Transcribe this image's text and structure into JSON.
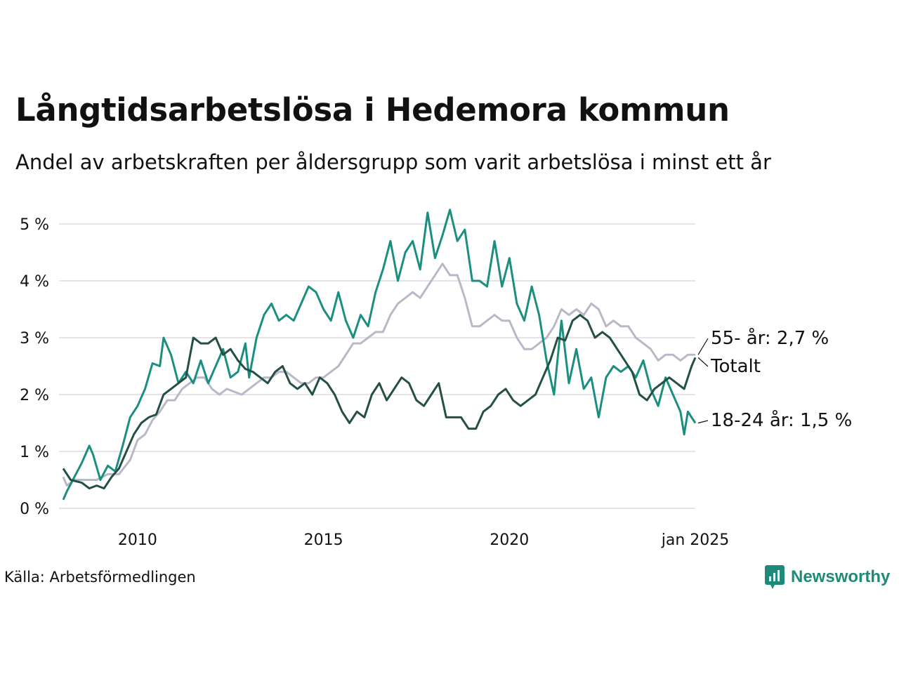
{
  "title": "Långtidsarbetslösa i Hedemora kommun",
  "subtitle": "Andel av arbetskraften per åldersgrupp som varit arbetslösa i minst ett år",
  "source": "Källa: Arbetsförmedlingen",
  "brand": "Newsworthy",
  "colors": {
    "youth": "#1a8f80",
    "total": "#244f45",
    "senior": "#b9b8c8",
    "grid": "#e3e3ea"
  },
  "chart_data": {
    "type": "line",
    "x_unit": "year",
    "xlim": [
      2008.0,
      2025.0
    ],
    "ylim": [
      0,
      5.3
    ],
    "y_ticks": [
      0,
      1,
      2,
      3,
      4,
      5
    ],
    "y_tick_labels": [
      "0 %",
      "1 %",
      "2 %",
      "3 %",
      "4 %",
      "5 %"
    ],
    "x_ticks": [
      2010,
      2015,
      2020,
      2025
    ],
    "x_tick_labels": [
      "2010",
      "2015",
      "2020",
      "jan 2025"
    ],
    "grid": true,
    "series": [
      {
        "key": "senior",
        "name": "55- år",
        "end_label": "55- år: 2,7 %",
        "points": [
          [
            2008.0,
            0.55
          ],
          [
            2008.1,
            0.4
          ],
          [
            2008.3,
            0.5
          ],
          [
            2008.6,
            0.5
          ],
          [
            2008.9,
            0.5
          ],
          [
            2009.2,
            0.6
          ],
          [
            2009.5,
            0.6
          ],
          [
            2009.8,
            0.85
          ],
          [
            2010.0,
            1.2
          ],
          [
            2010.2,
            1.3
          ],
          [
            2010.4,
            1.55
          ],
          [
            2010.6,
            1.7
          ],
          [
            2010.8,
            1.9
          ],
          [
            2011.0,
            1.9
          ],
          [
            2011.2,
            2.1
          ],
          [
            2011.4,
            2.2
          ],
          [
            2011.6,
            2.3
          ],
          [
            2011.8,
            2.3
          ],
          [
            2012.0,
            2.1
          ],
          [
            2012.2,
            2.0
          ],
          [
            2012.4,
            2.1
          ],
          [
            2012.6,
            2.05
          ],
          [
            2012.8,
            2.0
          ],
          [
            2013.0,
            2.1
          ],
          [
            2013.2,
            2.2
          ],
          [
            2013.4,
            2.3
          ],
          [
            2013.6,
            2.3
          ],
          [
            2013.8,
            2.4
          ],
          [
            2014.0,
            2.4
          ],
          [
            2014.2,
            2.3
          ],
          [
            2014.4,
            2.2
          ],
          [
            2014.6,
            2.2
          ],
          [
            2014.8,
            2.3
          ],
          [
            2015.0,
            2.3
          ],
          [
            2015.2,
            2.4
          ],
          [
            2015.4,
            2.5
          ],
          [
            2015.6,
            2.7
          ],
          [
            2015.8,
            2.9
          ],
          [
            2016.0,
            2.9
          ],
          [
            2016.2,
            3.0
          ],
          [
            2016.4,
            3.1
          ],
          [
            2016.6,
            3.1
          ],
          [
            2016.8,
            3.4
          ],
          [
            2017.0,
            3.6
          ],
          [
            2017.2,
            3.7
          ],
          [
            2017.4,
            3.8
          ],
          [
            2017.6,
            3.7
          ],
          [
            2017.8,
            3.9
          ],
          [
            2018.0,
            4.1
          ],
          [
            2018.2,
            4.3
          ],
          [
            2018.4,
            4.1
          ],
          [
            2018.6,
            4.1
          ],
          [
            2018.8,
            3.7
          ],
          [
            2019.0,
            3.2
          ],
          [
            2019.2,
            3.2
          ],
          [
            2019.4,
            3.3
          ],
          [
            2019.6,
            3.4
          ],
          [
            2019.8,
            3.3
          ],
          [
            2020.0,
            3.3
          ],
          [
            2020.2,
            3.0
          ],
          [
            2020.4,
            2.8
          ],
          [
            2020.6,
            2.8
          ],
          [
            2020.8,
            2.9
          ],
          [
            2021.0,
            3.0
          ],
          [
            2021.2,
            3.2
          ],
          [
            2021.4,
            3.5
          ],
          [
            2021.6,
            3.4
          ],
          [
            2021.8,
            3.5
          ],
          [
            2022.0,
            3.4
          ],
          [
            2022.2,
            3.6
          ],
          [
            2022.4,
            3.5
          ],
          [
            2022.6,
            3.2
          ],
          [
            2022.8,
            3.3
          ],
          [
            2023.0,
            3.2
          ],
          [
            2023.2,
            3.2
          ],
          [
            2023.4,
            3.0
          ],
          [
            2023.6,
            2.9
          ],
          [
            2023.8,
            2.8
          ],
          [
            2024.0,
            2.6
          ],
          [
            2024.2,
            2.7
          ],
          [
            2024.4,
            2.7
          ],
          [
            2024.6,
            2.6
          ],
          [
            2024.8,
            2.7
          ],
          [
            2025.0,
            2.7
          ]
        ]
      },
      {
        "key": "youth",
        "name": "18-24 år",
        "end_label": "18-24 år: 1,5 %",
        "points": [
          [
            2008.0,
            0.15
          ],
          [
            2008.1,
            0.3
          ],
          [
            2008.3,
            0.55
          ],
          [
            2008.5,
            0.8
          ],
          [
            2008.7,
            1.1
          ],
          [
            2008.8,
            0.95
          ],
          [
            2009.0,
            0.5
          ],
          [
            2009.2,
            0.75
          ],
          [
            2009.4,
            0.65
          ],
          [
            2009.6,
            1.1
          ],
          [
            2009.8,
            1.6
          ],
          [
            2010.0,
            1.8
          ],
          [
            2010.2,
            2.1
          ],
          [
            2010.4,
            2.55
          ],
          [
            2010.6,
            2.5
          ],
          [
            2010.7,
            3.0
          ],
          [
            2010.9,
            2.7
          ],
          [
            2011.1,
            2.2
          ],
          [
            2011.3,
            2.4
          ],
          [
            2011.5,
            2.2
          ],
          [
            2011.7,
            2.6
          ],
          [
            2011.9,
            2.2
          ],
          [
            2012.1,
            2.5
          ],
          [
            2012.3,
            2.8
          ],
          [
            2012.5,
            2.3
          ],
          [
            2012.7,
            2.4
          ],
          [
            2012.9,
            2.9
          ],
          [
            2013.0,
            2.3
          ],
          [
            2013.2,
            3.0
          ],
          [
            2013.4,
            3.4
          ],
          [
            2013.6,
            3.6
          ],
          [
            2013.8,
            3.3
          ],
          [
            2014.0,
            3.4
          ],
          [
            2014.2,
            3.3
          ],
          [
            2014.4,
            3.6
          ],
          [
            2014.6,
            3.9
          ],
          [
            2014.8,
            3.8
          ],
          [
            2015.0,
            3.5
          ],
          [
            2015.2,
            3.3
          ],
          [
            2015.4,
            3.8
          ],
          [
            2015.6,
            3.3
          ],
          [
            2015.8,
            3.0
          ],
          [
            2016.0,
            3.4
          ],
          [
            2016.2,
            3.2
          ],
          [
            2016.4,
            3.8
          ],
          [
            2016.6,
            4.2
          ],
          [
            2016.8,
            4.7
          ],
          [
            2017.0,
            4.0
          ],
          [
            2017.2,
            4.5
          ],
          [
            2017.4,
            4.7
          ],
          [
            2017.6,
            4.2
          ],
          [
            2017.8,
            5.2
          ],
          [
            2018.0,
            4.4
          ],
          [
            2018.2,
            4.8
          ],
          [
            2018.4,
            5.25
          ],
          [
            2018.6,
            4.7
          ],
          [
            2018.8,
            4.9
          ],
          [
            2019.0,
            4.0
          ],
          [
            2019.2,
            4.0
          ],
          [
            2019.4,
            3.9
          ],
          [
            2019.6,
            4.7
          ],
          [
            2019.8,
            3.9
          ],
          [
            2020.0,
            4.4
          ],
          [
            2020.2,
            3.6
          ],
          [
            2020.4,
            3.3
          ],
          [
            2020.6,
            3.9
          ],
          [
            2020.8,
            3.4
          ],
          [
            2021.0,
            2.6
          ],
          [
            2021.2,
            2.0
          ],
          [
            2021.4,
            3.3
          ],
          [
            2021.6,
            2.2
          ],
          [
            2021.8,
            2.8
          ],
          [
            2022.0,
            2.1
          ],
          [
            2022.2,
            2.3
          ],
          [
            2022.4,
            1.6
          ],
          [
            2022.6,
            2.3
          ],
          [
            2022.8,
            2.5
          ],
          [
            2023.0,
            2.4
          ],
          [
            2023.2,
            2.5
          ],
          [
            2023.4,
            2.3
          ],
          [
            2023.6,
            2.6
          ],
          [
            2023.8,
            2.1
          ],
          [
            2024.0,
            1.8
          ],
          [
            2024.2,
            2.3
          ],
          [
            2024.4,
            2.0
          ],
          [
            2024.6,
            1.7
          ],
          [
            2024.7,
            1.3
          ],
          [
            2024.8,
            1.7
          ],
          [
            2025.0,
            1.5
          ]
        ]
      },
      {
        "key": "total",
        "name": "Totalt",
        "end_label": "Totalt",
        "points": [
          [
            2008.0,
            0.7
          ],
          [
            2008.2,
            0.5
          ],
          [
            2008.5,
            0.45
          ],
          [
            2008.7,
            0.35
          ],
          [
            2008.9,
            0.4
          ],
          [
            2009.1,
            0.35
          ],
          [
            2009.3,
            0.55
          ],
          [
            2009.5,
            0.7
          ],
          [
            2009.7,
            1.0
          ],
          [
            2009.9,
            1.3
          ],
          [
            2010.1,
            1.5
          ],
          [
            2010.3,
            1.6
          ],
          [
            2010.5,
            1.65
          ],
          [
            2010.7,
            2.0
          ],
          [
            2010.9,
            2.1
          ],
          [
            2011.1,
            2.2
          ],
          [
            2011.3,
            2.3
          ],
          [
            2011.5,
            3.0
          ],
          [
            2011.7,
            2.9
          ],
          [
            2011.9,
            2.9
          ],
          [
            2012.1,
            3.0
          ],
          [
            2012.3,
            2.7
          ],
          [
            2012.5,
            2.8
          ],
          [
            2012.7,
            2.6
          ],
          [
            2012.9,
            2.45
          ],
          [
            2013.1,
            2.4
          ],
          [
            2013.3,
            2.3
          ],
          [
            2013.5,
            2.2
          ],
          [
            2013.7,
            2.4
          ],
          [
            2013.9,
            2.5
          ],
          [
            2014.1,
            2.2
          ],
          [
            2014.3,
            2.1
          ],
          [
            2014.5,
            2.2
          ],
          [
            2014.7,
            2.0
          ],
          [
            2014.9,
            2.3
          ],
          [
            2015.1,
            2.2
          ],
          [
            2015.3,
            2.0
          ],
          [
            2015.5,
            1.7
          ],
          [
            2015.7,
            1.5
          ],
          [
            2015.9,
            1.7
          ],
          [
            2016.1,
            1.6
          ],
          [
            2016.3,
            2.0
          ],
          [
            2016.5,
            2.2
          ],
          [
            2016.7,
            1.9
          ],
          [
            2016.9,
            2.1
          ],
          [
            2017.1,
            2.3
          ],
          [
            2017.3,
            2.2
          ],
          [
            2017.5,
            1.9
          ],
          [
            2017.7,
            1.8
          ],
          [
            2017.9,
            2.0
          ],
          [
            2018.1,
            2.2
          ],
          [
            2018.3,
            1.6
          ],
          [
            2018.5,
            1.6
          ],
          [
            2018.7,
            1.6
          ],
          [
            2018.9,
            1.4
          ],
          [
            2019.1,
            1.4
          ],
          [
            2019.3,
            1.7
          ],
          [
            2019.5,
            1.8
          ],
          [
            2019.7,
            2.0
          ],
          [
            2019.9,
            2.1
          ],
          [
            2020.1,
            1.9
          ],
          [
            2020.3,
            1.8
          ],
          [
            2020.5,
            1.9
          ],
          [
            2020.7,
            2.0
          ],
          [
            2020.9,
            2.3
          ],
          [
            2021.1,
            2.6
          ],
          [
            2021.3,
            3.0
          ],
          [
            2021.5,
            2.95
          ],
          [
            2021.7,
            3.3
          ],
          [
            2021.9,
            3.4
          ],
          [
            2022.1,
            3.3
          ],
          [
            2022.3,
            3.0
          ],
          [
            2022.5,
            3.1
          ],
          [
            2022.7,
            3.0
          ],
          [
            2022.9,
            2.8
          ],
          [
            2023.1,
            2.6
          ],
          [
            2023.3,
            2.4
          ],
          [
            2023.5,
            2.0
          ],
          [
            2023.7,
            1.9
          ],
          [
            2023.9,
            2.1
          ],
          [
            2024.1,
            2.2
          ],
          [
            2024.3,
            2.3
          ],
          [
            2024.5,
            2.2
          ],
          [
            2024.7,
            2.1
          ],
          [
            2024.9,
            2.5
          ],
          [
            2025.0,
            2.65
          ]
        ]
      }
    ]
  }
}
